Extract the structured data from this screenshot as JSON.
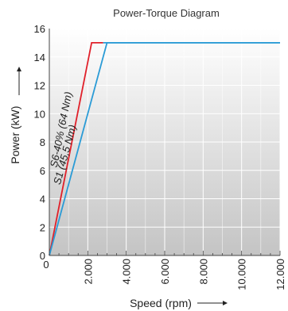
{
  "chart_data": {
    "type": "line",
    "title": "Power-Torque Diagram",
    "xlabel": "Speed (rpm)",
    "ylabel": "Power (kW)",
    "xlim": [
      0,
      12000
    ],
    "ylim": [
      0,
      16
    ],
    "x_ticks": [
      {
        "value": 0,
        "label": "0"
      },
      {
        "value": 2000,
        "label": "2.000"
      },
      {
        "value": 4000,
        "label": "4.000"
      },
      {
        "value": 6000,
        "label": "6.000"
      },
      {
        "value": 8000,
        "label": "8.000"
      },
      {
        "value": 10000,
        "label": "10.000"
      },
      {
        "value": 12000,
        "label": "12.000"
      }
    ],
    "y_ticks": [
      {
        "value": 0,
        "label": "0"
      },
      {
        "value": 2,
        "label": "2"
      },
      {
        "value": 4,
        "label": "4"
      },
      {
        "value": 6,
        "label": "6"
      },
      {
        "value": 8,
        "label": "8"
      },
      {
        "value": 10,
        "label": "10"
      },
      {
        "value": 12,
        "label": "12"
      },
      {
        "value": 14,
        "label": "14"
      },
      {
        "value": 16,
        "label": "16"
      }
    ],
    "grid": true,
    "series": [
      {
        "name": "S6-40% (64 Nm)",
        "color": "#e0202a",
        "x": [
          0,
          2200,
          2800
        ],
        "y": [
          0,
          15,
          15
        ]
      },
      {
        "name": "S1 (45,5 Nm)",
        "color": "#2a9bd6",
        "x": [
          0,
          3000,
          12000
        ],
        "y": [
          0,
          15,
          15
        ]
      }
    ],
    "flat_line": {
      "color": "#2a9bd6",
      "x": [
        2800,
        12000
      ],
      "y": [
        15,
        15
      ]
    },
    "annotations": [
      {
        "text": "S6-40% (64 Nm)",
        "series": 0
      },
      {
        "text": "S1 (45,5 Nm)",
        "series": 1
      }
    ]
  }
}
